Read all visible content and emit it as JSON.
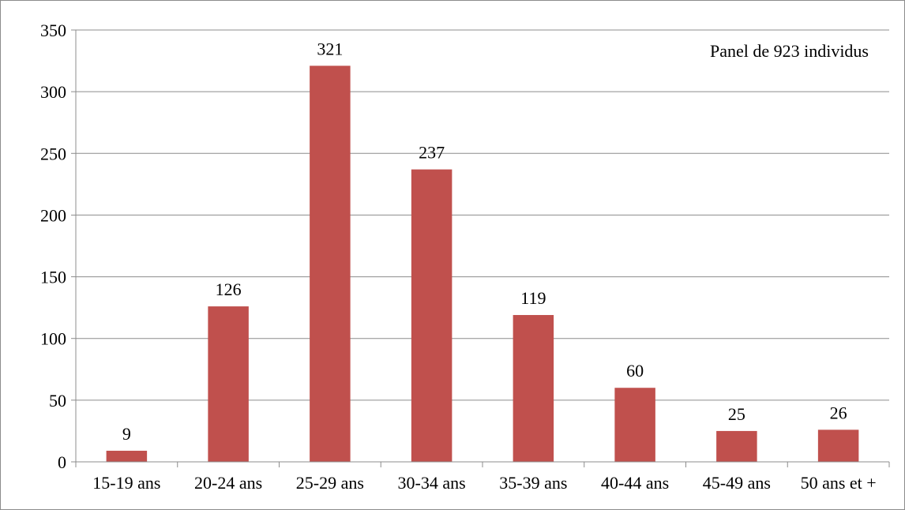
{
  "chart_data": {
    "type": "bar",
    "title": "",
    "xlabel": "",
    "ylabel": "",
    "annotation": "Panel de 923 individus",
    "categories": [
      "15-19 ans",
      "20-24 ans",
      "25-29 ans",
      "30-34 ans",
      "35-39 ans",
      "40-44 ans",
      "45-49 ans",
      "50 ans et +"
    ],
    "values": [
      9,
      126,
      321,
      237,
      119,
      60,
      25,
      26
    ],
    "ylim": [
      0,
      350
    ],
    "yticks": [
      0,
      50,
      100,
      150,
      200,
      250,
      300,
      350
    ],
    "grid": true,
    "legend": "none",
    "bar_color": "#C0504D",
    "grid_color": "#8C8C8C"
  }
}
